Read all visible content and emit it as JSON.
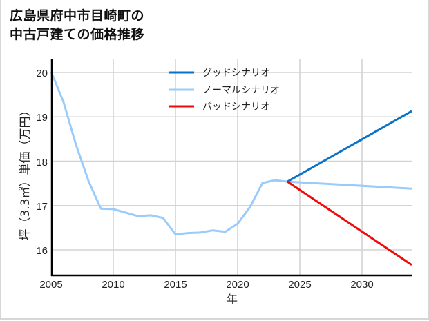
{
  "title": {
    "line1": "広島県府中市目崎町の",
    "line2": "中古戸建ての価格推移"
  },
  "chart_data": {
    "type": "line",
    "title": "広島県府中市目崎町の中古戸建ての価格推移",
    "xlabel": "年",
    "ylabel": "坪（3.3㎡）単価（万円）",
    "xlim": [
      2005,
      2034
    ],
    "ylim": [
      15.42,
      20.1
    ],
    "xticks": [
      2005,
      2010,
      2015,
      2020,
      2025,
      2030
    ],
    "yticks": [
      16,
      17,
      18,
      19,
      20
    ],
    "grid": true,
    "legend_position": "upper center",
    "series": [
      {
        "name": "グッドシナリオ",
        "color": "#0a72c6",
        "x": [
          2024,
          2034
        ],
        "values": [
          17.54,
          19.13
        ]
      },
      {
        "name": "ノーマルシナリオ",
        "color": "#99ccfa",
        "x": [
          2005,
          2006,
          2007,
          2008,
          2009,
          2010,
          2011,
          2012,
          2013,
          2014,
          2015,
          2016,
          2017,
          2018,
          2019,
          2020,
          2021,
          2022,
          2023,
          2024,
          2034
        ],
        "values": [
          20.02,
          19.33,
          18.37,
          17.56,
          16.93,
          16.92,
          16.84,
          16.76,
          16.78,
          16.72,
          16.35,
          16.38,
          16.39,
          16.44,
          16.41,
          16.59,
          16.97,
          17.51,
          17.57,
          17.54,
          17.38
        ]
      },
      {
        "name": "バッドシナリオ",
        "color": "#f00a0a",
        "x": [
          2024,
          2034
        ],
        "values": [
          17.54,
          15.66
        ]
      }
    ]
  },
  "axis": {
    "xlabel": "年",
    "ylabel": "坪（3.3㎡）単価（万円）",
    "xtick_labels": [
      "2005",
      "2010",
      "2015",
      "2020",
      "2025",
      "2030"
    ],
    "ytick_labels": [
      "16",
      "17",
      "18",
      "19",
      "20"
    ]
  },
  "legend": {
    "items": [
      {
        "label": "グッドシナリオ",
        "color": "#0a72c6"
      },
      {
        "label": "ノーマルシナリオ",
        "color": "#99ccfa"
      },
      {
        "label": "バッドシナリオ",
        "color": "#f00a0a"
      }
    ]
  }
}
